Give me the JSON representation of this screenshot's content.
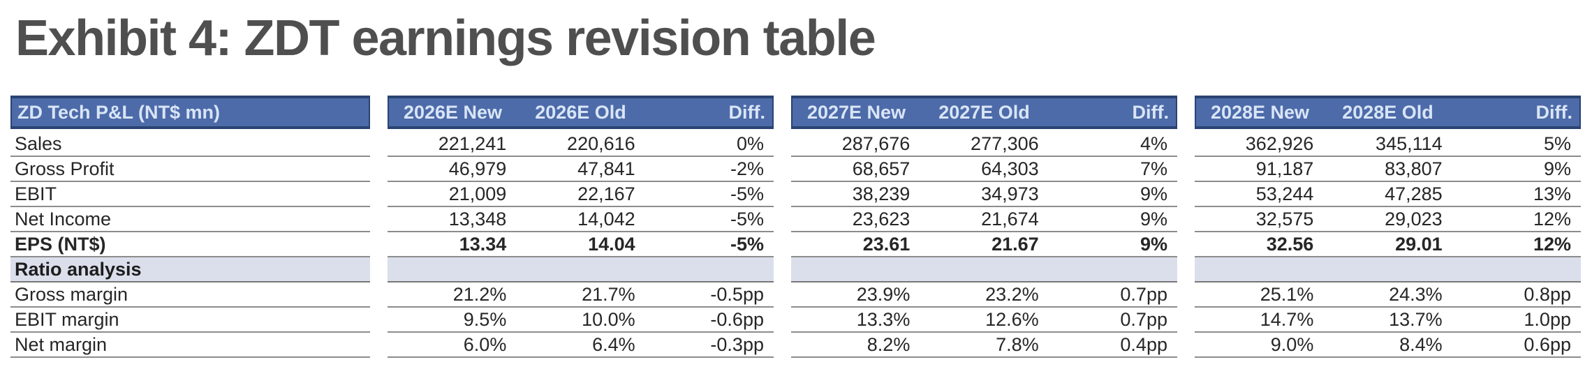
{
  "title": "Exhibit 4: ZDT earnings revision table",
  "colors": {
    "header_bg": "#4d6ba9",
    "header_border": "#2a4372",
    "header_text": "#d9e5f7",
    "section_row_bg": "#dbdfec",
    "row_rule": "#8c8c8c",
    "title_text": "#4f4f4f"
  },
  "table": {
    "label_header": "ZD Tech P&L (NT$ mn)",
    "pnl_labels": [
      "Sales",
      "Gross Profit",
      "EBIT",
      "Net Income",
      "EPS (NT$)"
    ],
    "section_label": "Ratio analysis",
    "ratio_labels": [
      "Gross margin",
      "EBIT margin",
      "Net margin"
    ],
    "blocks": [
      {
        "headers": [
          "2026E New",
          "2026E Old",
          "Diff."
        ],
        "pnl": [
          [
            "221,241",
            "220,616",
            "0%"
          ],
          [
            "46,979",
            "47,841",
            "-2%"
          ],
          [
            "21,009",
            "22,167",
            "-5%"
          ],
          [
            "13,348",
            "14,042",
            "-5%"
          ],
          [
            "13.34",
            "14.04",
            "-5%"
          ]
        ],
        "ratios": [
          [
            "21.2%",
            "21.7%",
            "-0.5pp"
          ],
          [
            "9.5%",
            "10.0%",
            "-0.6pp"
          ],
          [
            "6.0%",
            "6.4%",
            "-0.3pp"
          ]
        ]
      },
      {
        "headers": [
          "2027E New",
          "2027E Old",
          "Diff."
        ],
        "pnl": [
          [
            "287,676",
            "277,306",
            "4%"
          ],
          [
            "68,657",
            "64,303",
            "7%"
          ],
          [
            "38,239",
            "34,973",
            "9%"
          ],
          [
            "23,623",
            "21,674",
            "9%"
          ],
          [
            "23.61",
            "21.67",
            "9%"
          ]
        ],
        "ratios": [
          [
            "23.9%",
            "23.2%",
            "0.7pp"
          ],
          [
            "13.3%",
            "12.6%",
            "0.7pp"
          ],
          [
            "8.2%",
            "7.8%",
            "0.4pp"
          ]
        ]
      },
      {
        "headers": [
          "2028E New",
          "2028E Old",
          "Diff."
        ],
        "pnl": [
          [
            "362,926",
            "345,114",
            "5%"
          ],
          [
            "91,187",
            "83,807",
            "9%"
          ],
          [
            "53,244",
            "47,285",
            "13%"
          ],
          [
            "32,575",
            "29,023",
            "12%"
          ],
          [
            "32.56",
            "29.01",
            "12%"
          ]
        ],
        "ratios": [
          [
            "25.1%",
            "24.3%",
            "0.8pp"
          ],
          [
            "14.7%",
            "13.7%",
            "1.0pp"
          ],
          [
            "9.0%",
            "8.4%",
            "0.6pp"
          ]
        ]
      }
    ]
  }
}
